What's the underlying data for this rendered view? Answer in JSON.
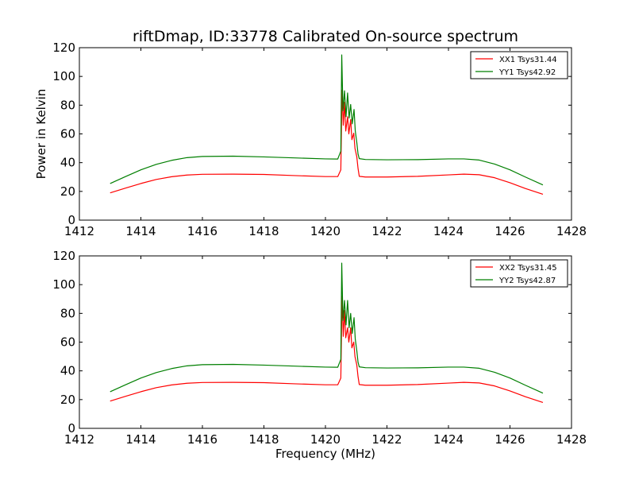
{
  "figure": {
    "title": "riftDmap, ID:33778 Calibrated On-source spectrum"
  },
  "colors": {
    "red": "#ff0000",
    "green": "#007f00"
  },
  "chart_data": [
    {
      "type": "line",
      "title": "riftDmap, ID:33778 Calibrated On-source spectrum",
      "xlabel": "",
      "ylabel": "Power in Kelvin",
      "xlim": [
        1412,
        1428
      ],
      "ylim": [
        0,
        120
      ],
      "xticks": [
        1412,
        1414,
        1416,
        1418,
        1420,
        1422,
        1424,
        1426,
        1428
      ],
      "yticks": [
        0,
        20,
        40,
        60,
        80,
        100,
        120
      ],
      "legend": "top-right",
      "grid": false,
      "series": [
        {
          "name": "XX1 Tsys31.44",
          "color": "#ff0000",
          "points": [
            [
              1413.0,
              19.0
            ],
            [
              1413.5,
              22.3
            ],
            [
              1414.0,
              25.5
            ],
            [
              1414.5,
              28.3
            ],
            [
              1415.0,
              30.2
            ],
            [
              1415.5,
              31.4
            ],
            [
              1416.0,
              31.9
            ],
            [
              1417.0,
              32.0
            ],
            [
              1418.0,
              31.8
            ],
            [
              1419.0,
              31.0
            ],
            [
              1420.0,
              30.3
            ],
            [
              1420.4,
              30.3
            ],
            [
              1420.5,
              35.0
            ],
            [
              1420.54,
              90.5
            ],
            [
              1420.58,
              66.0
            ],
            [
              1420.62,
              82.0
            ],
            [
              1420.66,
              62.0
            ],
            [
              1420.72,
              72.0
            ],
            [
              1420.76,
              60.0
            ],
            [
              1420.82,
              70.0
            ],
            [
              1420.86,
              56.0
            ],
            [
              1420.92,
              60.5
            ],
            [
              1420.96,
              50.0
            ],
            [
              1421.02,
              44.0
            ],
            [
              1421.06,
              36.0
            ],
            [
              1421.1,
              30.5
            ],
            [
              1421.3,
              30.0
            ],
            [
              1422.0,
              30.0
            ],
            [
              1423.0,
              30.5
            ],
            [
              1424.0,
              31.5
            ],
            [
              1424.5,
              32.0
            ],
            [
              1425.0,
              31.6
            ],
            [
              1425.5,
              29.5
            ],
            [
              1426.0,
              26.0
            ],
            [
              1426.5,
              22.0
            ],
            [
              1427.07,
              18.0
            ]
          ]
        },
        {
          "name": "YY1 Tsys42.92",
          "color": "#007f00",
          "points": [
            [
              1413.0,
              25.5
            ],
            [
              1413.5,
              30.3
            ],
            [
              1414.0,
              35.0
            ],
            [
              1414.5,
              38.8
            ],
            [
              1415.0,
              41.6
            ],
            [
              1415.5,
              43.5
            ],
            [
              1416.0,
              44.3
            ],
            [
              1417.0,
              44.5
            ],
            [
              1418.0,
              44.0
            ],
            [
              1419.0,
              43.3
            ],
            [
              1420.0,
              42.6
            ],
            [
              1420.4,
              42.5
            ],
            [
              1420.5,
              48.0
            ],
            [
              1420.53,
              115.0
            ],
            [
              1420.57,
              76.0
            ],
            [
              1420.62,
              90.0
            ],
            [
              1420.67,
              72.0
            ],
            [
              1420.72,
              88.5
            ],
            [
              1420.77,
              71.0
            ],
            [
              1420.82,
              80.5
            ],
            [
              1420.87,
              67.0
            ],
            [
              1420.93,
              77.0
            ],
            [
              1420.97,
              62.0
            ],
            [
              1421.02,
              54.0
            ],
            [
              1421.06,
              46.0
            ],
            [
              1421.1,
              42.8
            ],
            [
              1421.3,
              42.2
            ],
            [
              1422.0,
              42.0
            ],
            [
              1423.0,
              42.1
            ],
            [
              1424.0,
              42.6
            ],
            [
              1424.5,
              42.6
            ],
            [
              1425.0,
              41.8
            ],
            [
              1425.5,
              39.0
            ],
            [
              1426.0,
              35.0
            ],
            [
              1426.5,
              30.0
            ],
            [
              1427.07,
              24.5
            ]
          ]
        }
      ]
    },
    {
      "type": "line",
      "title": "",
      "xlabel": "Frequency (MHz)",
      "ylabel": "",
      "xlim": [
        1412,
        1428
      ],
      "ylim": [
        0,
        120
      ],
      "xticks": [
        1412,
        1414,
        1416,
        1418,
        1420,
        1422,
        1424,
        1426,
        1428
      ],
      "yticks": [
        0,
        20,
        40,
        60,
        80,
        100,
        120
      ],
      "legend": "top-right",
      "grid": false,
      "series": [
        {
          "name": "XX2 Tsys31.45",
          "color": "#ff0000",
          "points": [
            [
              1413.0,
              19.0
            ],
            [
              1413.5,
              22.3
            ],
            [
              1414.0,
              25.5
            ],
            [
              1414.5,
              28.3
            ],
            [
              1415.0,
              30.2
            ],
            [
              1415.5,
              31.4
            ],
            [
              1416.0,
              31.9
            ],
            [
              1417.0,
              32.0
            ],
            [
              1418.0,
              31.8
            ],
            [
              1419.0,
              31.0
            ],
            [
              1420.0,
              30.3
            ],
            [
              1420.4,
              30.3
            ],
            [
              1420.5,
              35.0
            ],
            [
              1420.54,
              92.0
            ],
            [
              1420.58,
              64.0
            ],
            [
              1420.62,
              82.0
            ],
            [
              1420.66,
              63.0
            ],
            [
              1420.72,
              70.0
            ],
            [
              1420.76,
              60.0
            ],
            [
              1420.82,
              70.0
            ],
            [
              1420.86,
              56.0
            ],
            [
              1420.92,
              60.0
            ],
            [
              1420.96,
              50.0
            ],
            [
              1421.02,
              44.0
            ],
            [
              1421.06,
              36.0
            ],
            [
              1421.1,
              30.5
            ],
            [
              1421.3,
              30.0
            ],
            [
              1422.0,
              30.0
            ],
            [
              1423.0,
              30.5
            ],
            [
              1424.0,
              31.5
            ],
            [
              1424.5,
              32.0
            ],
            [
              1425.0,
              31.6
            ],
            [
              1425.5,
              29.5
            ],
            [
              1426.0,
              26.0
            ],
            [
              1426.5,
              22.0
            ],
            [
              1427.07,
              18.0
            ]
          ]
        },
        {
          "name": "YY2 Tsys42.87",
          "color": "#007f00",
          "points": [
            [
              1413.0,
              25.5
            ],
            [
              1413.5,
              30.3
            ],
            [
              1414.0,
              35.0
            ],
            [
              1414.5,
              38.8
            ],
            [
              1415.0,
              41.6
            ],
            [
              1415.5,
              43.5
            ],
            [
              1416.0,
              44.3
            ],
            [
              1417.0,
              44.5
            ],
            [
              1418.0,
              44.0
            ],
            [
              1419.0,
              43.3
            ],
            [
              1420.0,
              42.6
            ],
            [
              1420.4,
              42.5
            ],
            [
              1420.5,
              48.0
            ],
            [
              1420.53,
              115.0
            ],
            [
              1420.57,
              75.0
            ],
            [
              1420.62,
              89.0
            ],
            [
              1420.67,
              72.0
            ],
            [
              1420.72,
              89.0
            ],
            [
              1420.77,
              70.0
            ],
            [
              1420.82,
              80.0
            ],
            [
              1420.87,
              66.0
            ],
            [
              1420.93,
              77.0
            ],
            [
              1420.97,
              62.0
            ],
            [
              1421.02,
              54.0
            ],
            [
              1421.06,
              46.0
            ],
            [
              1421.1,
              42.8
            ],
            [
              1421.3,
              42.2
            ],
            [
              1422.0,
              42.0
            ],
            [
              1423.0,
              42.1
            ],
            [
              1424.0,
              42.6
            ],
            [
              1424.5,
              42.6
            ],
            [
              1425.0,
              41.8
            ],
            [
              1425.5,
              39.0
            ],
            [
              1426.0,
              35.0
            ],
            [
              1426.5,
              30.0
            ],
            [
              1427.07,
              24.5
            ]
          ]
        }
      ]
    }
  ]
}
